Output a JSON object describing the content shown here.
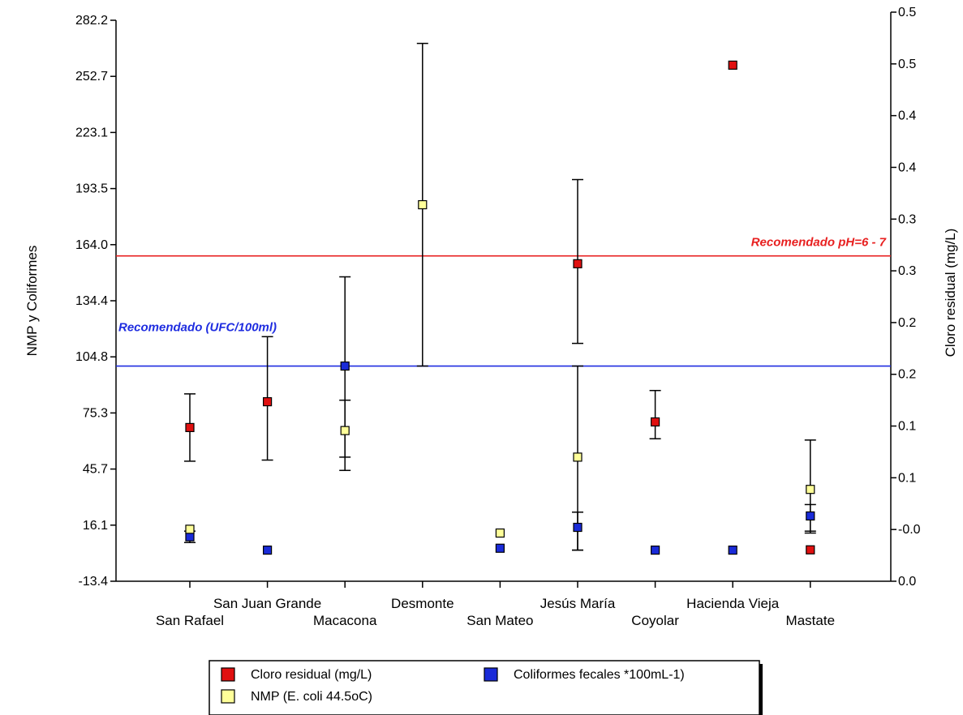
{
  "chart_data": {
    "type": "scatter",
    "categories": [
      "San Rafael",
      "San Juan Grande",
      "Macacona",
      "Desmonte",
      "San Mateo",
      "Jesús María",
      "Coyolar",
      "Hacienda Vieja",
      "Mastate"
    ],
    "left_axis": {
      "label": "NMP y Coliformes",
      "range": [
        -13.4,
        282.2
      ],
      "ticks": [
        "282.2",
        "252.7",
        "223.1",
        "193.5",
        "164.0",
        "134.4",
        "104.8",
        "75.3",
        "45.7",
        "16.1",
        "-13.4"
      ]
    },
    "right_axis": {
      "label": "Cloro residual (mg/L)",
      "range": [
        0.0,
        0.5
      ],
      "ticks": [
        "0.5",
        "0.5",
        "0.4",
        "0.4",
        "0.3",
        "0.3",
        "0.2",
        "0.2",
        "0.1",
        "0.1",
        "-0.0",
        "0.0"
      ]
    },
    "reference_lines": [
      {
        "label": "Recomendado pH=6 - 7",
        "value": 0.29,
        "axis": "right",
        "color": "#e82020"
      },
      {
        "label": "Recomendado (UFC/100ml)",
        "value": 100,
        "axis": "left",
        "color": "#1f2de0"
      }
    ],
    "series": [
      {
        "name": "Cloro residual (mg/L)",
        "color": "#e01010",
        "axis": "right",
        "points": [
          {
            "x": "San Rafael",
            "y": 0.137,
            "low": 0.107,
            "high": 0.167
          },
          {
            "x": "San Juan Grande",
            "y": 0.16,
            "low": 0.108,
            "high": 0.218
          },
          {
            "x": "Hacienda Vieja",
            "y": 0.46
          },
          {
            "x": "Jesús María",
            "y": 0.283,
            "low": 0.212,
            "high": 0.358
          },
          {
            "x": "Coyolar",
            "y": 0.142,
            "low": 0.127,
            "high": 0.17
          },
          {
            "x": "Mastate",
            "y": 0.028
          }
        ]
      },
      {
        "name": "Coliformes fecales *100mL-1)",
        "color": "#1a2bd8",
        "axis": "left",
        "points": [
          {
            "x": "San Rafael",
            "y": 10,
            "low": 7,
            "high": 13
          },
          {
            "x": "San Juan Grande",
            "y": 3
          },
          {
            "x": "Macacona",
            "y": 100,
            "low": 45,
            "high": 147
          },
          {
            "x": "San Mateo",
            "y": 4
          },
          {
            "x": "Jesús María",
            "y": 15,
            "low": 3,
            "high": 23
          },
          {
            "x": "Coyolar",
            "y": 3
          },
          {
            "x": "Hacienda Vieja",
            "y": 3
          },
          {
            "x": "Mastate",
            "y": 21,
            "low": 13,
            "high": 27
          }
        ]
      },
      {
        "name": "NMP (E. coli 44.5oC)",
        "color": "#ffff99",
        "axis": "left",
        "points": [
          {
            "x": "San Rafael",
            "y": 14
          },
          {
            "x": "Macacona",
            "y": 66,
            "low": 52,
            "high": 82
          },
          {
            "x": "Desmonte",
            "y": 185,
            "low": 100,
            "high": 270
          },
          {
            "x": "San Mateo",
            "y": 12
          },
          {
            "x": "Jesús María",
            "y": 52,
            "low": 3,
            "high": 100
          },
          {
            "x": "Mastate",
            "y": 35,
            "low": 12,
            "high": 61
          }
        ]
      }
    ]
  }
}
